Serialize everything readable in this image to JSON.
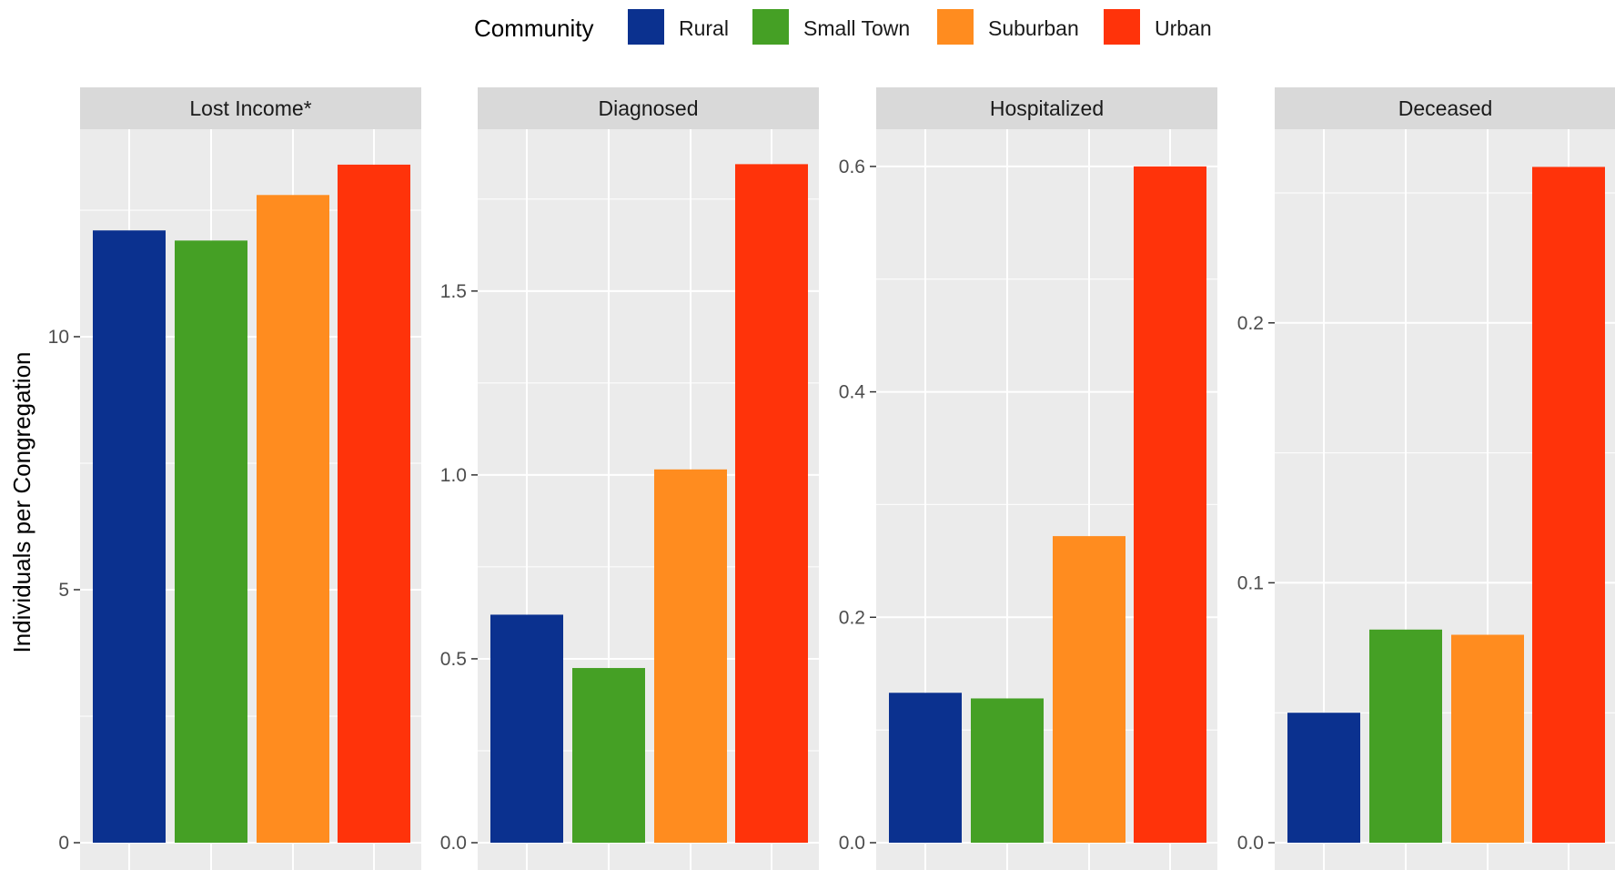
{
  "chart_data": {
    "type": "bar",
    "ylabel": "Individuals per Congregation",
    "xlabel": "",
    "legend": {
      "title": "Community",
      "position": "top",
      "entries": [
        "Rural",
        "Small Town",
        "Suburban",
        "Urban"
      ]
    },
    "colors": {
      "Rural": "#0B318F",
      "Small Town": "#45A025",
      "Suburban": "#FF8C1F",
      "Urban": "#FF330A",
      "panel_bg": "#EBEBEB",
      "strip_bg": "#D9D9D9",
      "grid": "#FFFFFF"
    },
    "categories": [
      "Rural",
      "Small Town",
      "Suburban",
      "Urban"
    ],
    "grid": true,
    "facets": [
      {
        "title": "Lost Income*",
        "values": [
          12.1,
          11.9,
          12.8,
          13.4
        ],
        "ylim": [
          0,
          14.1
        ],
        "yticks": [
          0,
          5,
          10
        ],
        "ytick_labels": [
          "0",
          "5",
          "10"
        ]
      },
      {
        "title": "Diagnosed",
        "values": [
          0.62,
          0.475,
          1.015,
          1.845
        ],
        "ylim": [
          0,
          1.94
        ],
        "yticks": [
          0.0,
          0.5,
          1.0,
          1.5
        ],
        "ytick_labels": [
          "0.0",
          "0.5",
          "1.0",
          "1.5"
        ]
      },
      {
        "title": "Hospitalized",
        "values": [
          0.133,
          0.128,
          0.272,
          0.6
        ],
        "ylim": [
          0,
          0.633
        ],
        "yticks": [
          0.0,
          0.2,
          0.4,
          0.6
        ],
        "ytick_labels": [
          "0.0",
          "0.2",
          "0.4",
          "0.6"
        ]
      },
      {
        "title": "Deceased",
        "values": [
          0.05,
          0.082,
          0.08,
          0.26
        ],
        "ylim": [
          0,
          0.2745
        ],
        "yticks": [
          0.0,
          0.1,
          0.2
        ],
        "ytick_labels": [
          "0.0",
          "0.1",
          "0.2"
        ]
      }
    ]
  }
}
